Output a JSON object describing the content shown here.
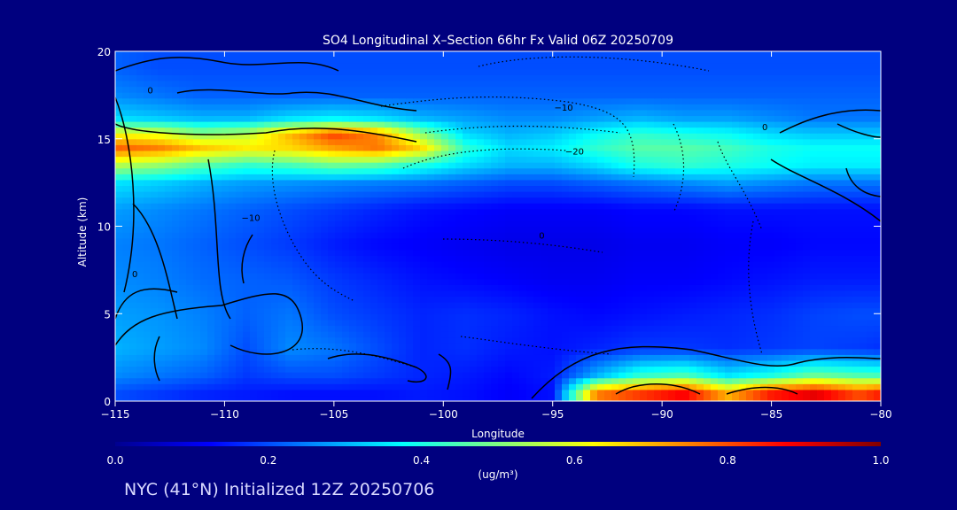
{
  "chart_data": {
    "type": "heatmap",
    "title": "SO4 Longitudinal X–Section 66hr  Fx Valid 06Z 20250709",
    "xlabel": "Longitude",
    "ylabel": "Altitude (km)",
    "xlim": [
      -115,
      -80
    ],
    "ylim": [
      0,
      20
    ],
    "x_ticks": [
      "−115",
      "−110",
      "−105",
      "−100",
      "−95",
      "−90",
      "−85",
      "−80"
    ],
    "y_ticks": [
      "0",
      "5",
      "10",
      "15",
      "20"
    ],
    "colorbar": {
      "ticks": [
        "0.0",
        "0.2",
        "0.4",
        "0.6",
        "0.8",
        "1.0"
      ],
      "range": [
        0,
        1
      ],
      "units_label": "(ug/m³)"
    },
    "colormap": [
      "#00008f",
      "#0000ff",
      "#0080ff",
      "#00ffff",
      "#80ff80",
      "#ffff00",
      "#ff8000",
      "#ff0000",
      "#800000"
    ],
    "contour_labels": [
      {
        "text": "0",
        "lon": -113.4,
        "alt": 17.6
      },
      {
        "text": "−10",
        "lon": -94.5,
        "alt": 16.6
      },
      {
        "text": "−20",
        "lon": -94.0,
        "alt": 14.1
      },
      {
        "text": "0",
        "lon": -95.5,
        "alt": 9.3
      },
      {
        "text": "0",
        "lon": -85.3,
        "alt": 15.5
      },
      {
        "text": "0",
        "lon": -114.1,
        "alt": 7.1
      },
      {
        "text": "−10",
        "lon": -108.8,
        "alt": 10.3
      }
    ],
    "concentration_grid": {
      "lon": [
        -115,
        -113,
        -111,
        -109,
        -107,
        -105,
        -103,
        -101,
        -99,
        -97,
        -95,
        -93,
        -91,
        -89,
        -87,
        -85,
        -83,
        -81,
        -80
      ],
      "alt": [
        0.5,
        1.5,
        3,
        5,
        7,
        9,
        11,
        12.5,
        13.5,
        14.5,
        15.3,
        16.2,
        17.5,
        19
      ],
      "values": [
        [
          0.2,
          0.18,
          0.16,
          0.15,
          0.14,
          0.14,
          0.14,
          0.15,
          0.14,
          0.12,
          0.14,
          0.75,
          0.82,
          0.88,
          0.7,
          0.85,
          0.9,
          0.8,
          0.85
        ],
        [
          0.26,
          0.24,
          0.22,
          0.18,
          0.2,
          0.2,
          0.18,
          0.16,
          0.15,
          0.13,
          0.15,
          0.3,
          0.42,
          0.45,
          0.35,
          0.4,
          0.48,
          0.45,
          0.44
        ],
        [
          0.3,
          0.28,
          0.26,
          0.2,
          0.26,
          0.24,
          0.2,
          0.16,
          0.17,
          0.15,
          0.14,
          0.16,
          0.18,
          0.18,
          0.17,
          0.18,
          0.19,
          0.18,
          0.17
        ],
        [
          0.28,
          0.27,
          0.25,
          0.22,
          0.24,
          0.2,
          0.18,
          0.16,
          0.17,
          0.16,
          0.14,
          0.13,
          0.14,
          0.15,
          0.16,
          0.17,
          0.19,
          0.2,
          0.2
        ],
        [
          0.26,
          0.25,
          0.23,
          0.22,
          0.21,
          0.18,
          0.16,
          0.14,
          0.13,
          0.12,
          0.11,
          0.11,
          0.12,
          0.12,
          0.13,
          0.14,
          0.15,
          0.15,
          0.15
        ],
        [
          0.25,
          0.24,
          0.22,
          0.2,
          0.18,
          0.15,
          0.13,
          0.12,
          0.11,
          0.1,
          0.1,
          0.1,
          0.11,
          0.11,
          0.12,
          0.12,
          0.13,
          0.13,
          0.13
        ],
        [
          0.28,
          0.26,
          0.24,
          0.22,
          0.2,
          0.18,
          0.16,
          0.14,
          0.13,
          0.12,
          0.12,
          0.12,
          0.13,
          0.13,
          0.14,
          0.14,
          0.14,
          0.14,
          0.14
        ],
        [
          0.35,
          0.33,
          0.3,
          0.28,
          0.27,
          0.26,
          0.25,
          0.24,
          0.22,
          0.2,
          0.2,
          0.22,
          0.24,
          0.26,
          0.28,
          0.26,
          0.24,
          0.24,
          0.24
        ],
        [
          0.55,
          0.52,
          0.46,
          0.42,
          0.44,
          0.48,
          0.46,
          0.4,
          0.34,
          0.3,
          0.3,
          0.34,
          0.4,
          0.42,
          0.4,
          0.38,
          0.36,
          0.36,
          0.36
        ],
        [
          0.78,
          0.75,
          0.68,
          0.64,
          0.66,
          0.72,
          0.76,
          0.66,
          0.42,
          0.34,
          0.36,
          0.42,
          0.46,
          0.46,
          0.44,
          0.4,
          0.38,
          0.38,
          0.38
        ],
        [
          0.62,
          0.6,
          0.52,
          0.56,
          0.7,
          0.82,
          0.74,
          0.52,
          0.34,
          0.3,
          0.32,
          0.38,
          0.42,
          0.4,
          0.38,
          0.34,
          0.32,
          0.32,
          0.32
        ],
        [
          0.34,
          0.32,
          0.3,
          0.3,
          0.34,
          0.36,
          0.34,
          0.3,
          0.28,
          0.26,
          0.26,
          0.28,
          0.3,
          0.28,
          0.28,
          0.26,
          0.24,
          0.24,
          0.24
        ],
        [
          0.26,
          0.24,
          0.22,
          0.22,
          0.22,
          0.22,
          0.22,
          0.22,
          0.22,
          0.22,
          0.22,
          0.22,
          0.22,
          0.22,
          0.22,
          0.22,
          0.22,
          0.22,
          0.22
        ],
        [
          0.22,
          0.2,
          0.2,
          0.2,
          0.2,
          0.2,
          0.2,
          0.2,
          0.2,
          0.2,
          0.2,
          0.2,
          0.2,
          0.2,
          0.2,
          0.2,
          0.2,
          0.2,
          0.2
        ]
      ]
    }
  },
  "footer": "NYC (41°N) Initialized 12Z 20250706"
}
